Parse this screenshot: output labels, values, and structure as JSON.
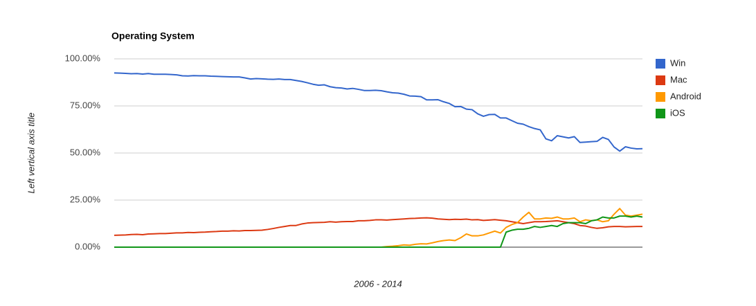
{
  "chart_data": {
    "type": "line",
    "title": "Operating System",
    "x_label": "2006 - 2014",
    "y_label": "Left vertical axis title",
    "categories": [
      null,
      null,
      null,
      null,
      null,
      null,
      null,
      null,
      null,
      null,
      null,
      null,
      null,
      null,
      null,
      null,
      null,
      null,
      null,
      null,
      null,
      null,
      null,
      null,
      null,
      null,
      null,
      null,
      null,
      null,
      null,
      null,
      null,
      null,
      null,
      null,
      null,
      null,
      null,
      null,
      null,
      null,
      null,
      null,
      null,
      null,
      null,
      null,
      null,
      null,
      null,
      null,
      null,
      null,
      null,
      null,
      null,
      null,
      null,
      null,
      null,
      null,
      null,
      null,
      null,
      null,
      null,
      null,
      null,
      null,
      null,
      null,
      null,
      null,
      null,
      null,
      null,
      null,
      null,
      null,
      null,
      null,
      null,
      null,
      null,
      null,
      null,
      null,
      null,
      null,
      null,
      null,
      null,
      null
    ],
    "ylim": [
      0,
      100
    ],
    "yticks": [
      {
        "value": 0,
        "label": "0.00%"
      },
      {
        "value": 25,
        "label": "25.00%"
      },
      {
        "value": 50,
        "label": "50.00%"
      },
      {
        "value": 75,
        "label": "75.00%"
      },
      {
        "value": 100,
        "label": "100.00%"
      }
    ],
    "grid": true,
    "legend": "right",
    "series": [
      {
        "name": "Win",
        "color": "#3366cc",
        "values": [
          92.5,
          92.4,
          92.3,
          92.1,
          92.2,
          91.9,
          92.2,
          91.8,
          91.8,
          91.8,
          91.7,
          91.5,
          91,
          90.9,
          91.1,
          91,
          91,
          90.8,
          90.7,
          90.6,
          90.5,
          90.4,
          90.4,
          89.9,
          89.3,
          89.5,
          89.4,
          89.2,
          89.1,
          89.3,
          89,
          89,
          88.5,
          88,
          87.3,
          86.5,
          86,
          86.2,
          85.2,
          84.7,
          84.5,
          84,
          84.3,
          83.8,
          83.2,
          83.2,
          83.3,
          83.1,
          82.5,
          82,
          81.8,
          81.2,
          80.3,
          80.2,
          79.9,
          78.2,
          78.2,
          78.3,
          77.2,
          76.3,
          74.6,
          74.7,
          73.3,
          73,
          70.8,
          69.5,
          70.4,
          70.5,
          68.6,
          68.6,
          67.2,
          65.8,
          65.3,
          64,
          63,
          62.3,
          57.5,
          56.5,
          59.2,
          58.6,
          58,
          58.7,
          55.6,
          55.8,
          56,
          56.2,
          58.3,
          57.2,
          53.2,
          51,
          53.3,
          52.6,
          52.2,
          52.3
        ]
      },
      {
        "name": "Mac",
        "color": "#dc3912",
        "values": [
          6.3,
          6.4,
          6.5,
          6.7,
          6.8,
          6.6,
          7,
          7.1,
          7.2,
          7.2,
          7.4,
          7.6,
          7.6,
          7.8,
          7.7,
          7.9,
          8,
          8.2,
          8.3,
          8.5,
          8.5,
          8.7,
          8.6,
          8.8,
          8.8,
          8.9,
          9,
          9.4,
          9.9,
          10.5,
          11,
          11.5,
          11.5,
          12.3,
          12.8,
          13,
          13.1,
          13.2,
          13.5,
          13.3,
          13.5,
          13.6,
          13.6,
          14,
          14,
          14.2,
          14.5,
          14.5,
          14.4,
          14.6,
          14.8,
          15,
          15.2,
          15.3,
          15.5,
          15.6,
          15.4,
          15,
          14.8,
          14.6,
          14.8,
          14.7,
          14.9,
          14.5,
          14.6,
          14.2,
          14.4,
          14.6,
          14.3,
          14,
          13.5,
          13,
          12.5,
          13,
          13.5,
          13.5,
          13.6,
          13.8,
          14,
          13.5,
          13,
          12.5,
          11.5,
          11.2,
          10.5,
          10,
          10.3,
          10.8,
          11,
          11,
          10.8,
          10.9,
          11,
          11
        ]
      },
      {
        "name": "Android",
        "color": "#ff9900",
        "values": [
          0,
          0,
          0,
          0,
          0,
          0,
          0,
          0,
          0,
          0,
          0,
          0,
          0,
          0,
          0,
          0,
          0,
          0,
          0,
          0,
          0,
          0,
          0,
          0,
          0,
          0,
          0,
          0,
          0,
          0,
          0,
          0,
          0,
          0,
          0,
          0,
          0,
          0,
          0,
          0,
          0,
          0,
          0,
          0,
          0,
          0,
          0,
          0,
          0.3,
          0.5,
          0.8,
          1.2,
          1,
          1.5,
          1.8,
          1.7,
          2.3,
          3,
          3.5,
          3.8,
          3.5,
          5,
          7,
          6,
          6,
          6.5,
          7.5,
          8.5,
          7.5,
          10.5,
          12,
          13,
          16,
          18.5,
          15,
          15,
          15.5,
          15.3,
          16,
          15,
          15,
          15.5,
          13.5,
          14.5,
          14,
          14.5,
          13.5,
          14,
          17.5,
          20.5,
          17,
          16.5,
          17,
          17.5
        ]
      },
      {
        "name": "iOS",
        "color": "#109618",
        "values": [
          0,
          0,
          0,
          0,
          0,
          0,
          0,
          0,
          0,
          0,
          0,
          0,
          0,
          0,
          0,
          0,
          0,
          0,
          0,
          0,
          0,
          0,
          0,
          0,
          0,
          0,
          0,
          0,
          0,
          0,
          0,
          0,
          0,
          0,
          0,
          0,
          0,
          0,
          0,
          0,
          0,
          0,
          0,
          0,
          0,
          0,
          0,
          0,
          0,
          0,
          0,
          0,
          0,
          0,
          0,
          0,
          0,
          0,
          0,
          0,
          0,
          0,
          0,
          0,
          0,
          0,
          0,
          0,
          0,
          8,
          9,
          9.5,
          9.5,
          10,
          11,
          10.5,
          11,
          11.5,
          11,
          12.5,
          13,
          13,
          13,
          12.5,
          14,
          14.5,
          16,
          15.5,
          15.5,
          16.5,
          16.5,
          16,
          16.5,
          16
        ]
      }
    ]
  }
}
